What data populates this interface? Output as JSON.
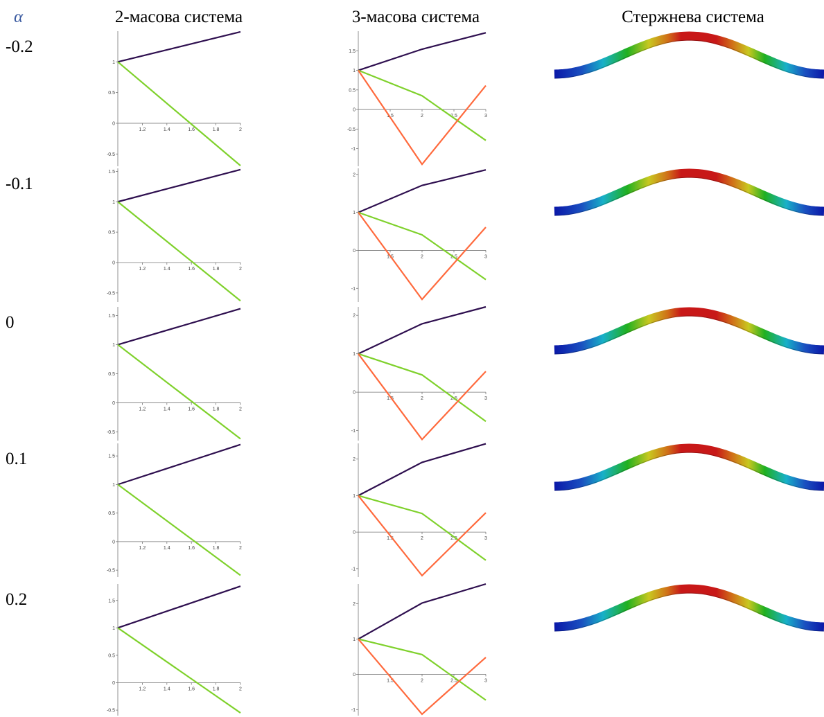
{
  "header": {
    "alpha": "α",
    "col2": "2-масова система",
    "col3": "3-масова система",
    "col4": "Стержнева система"
  },
  "rows": [
    {
      "alpha": "-0.2",
      "chart2": {
        "type": "line",
        "x": [
          1,
          2
        ],
        "xlim": [
          1,
          2
        ],
        "ylim": [
          -0.7,
          1.5
        ],
        "xticks": [
          1.2,
          1.4,
          1.6,
          1.8,
          2
        ],
        "yticks": [
          -0.5,
          0,
          0.5,
          1
        ],
        "series": [
          {
            "color": "#2e0f4f",
            "values": [
              1,
              1.49
            ]
          },
          {
            "color": "#7fd12c",
            "values": [
              1,
              -0.69
            ]
          }
        ]
      },
      "chart3": {
        "type": "line",
        "x": [
          1,
          2,
          3
        ],
        "xlim": [
          1,
          3
        ],
        "ylim": [
          -1.45,
          2.0
        ],
        "xticks": [
          1.5,
          2,
          2.5,
          3
        ],
        "yticks": [
          -1,
          -0.5,
          0,
          0.5,
          1,
          1.5
        ],
        "series": [
          {
            "color": "#2e0f4f",
            "values": [
              1,
              1.54,
              1.96
            ]
          },
          {
            "color": "#7fd12c",
            "values": [
              1,
              0.35,
              -0.79
            ]
          },
          {
            "color": "#ff6a3d",
            "values": [
              1,
              -1.4,
              0.61
            ]
          }
        ]
      }
    },
    {
      "alpha": "-0.1",
      "chart2": {
        "type": "line",
        "x": [
          1,
          2
        ],
        "xlim": [
          1,
          2
        ],
        "ylim": [
          -0.65,
          1.55
        ],
        "xticks": [
          1.2,
          1.4,
          1.6,
          1.8,
          2
        ],
        "yticks": [
          -0.5,
          0,
          0.5,
          1,
          1.5
        ],
        "series": [
          {
            "color": "#2e0f4f",
            "values": [
              1,
              1.53
            ]
          },
          {
            "color": "#7fd12c",
            "values": [
              1,
              -0.63
            ]
          }
        ]
      },
      "chart3": {
        "type": "line",
        "x": [
          1,
          2,
          3
        ],
        "xlim": [
          1,
          3
        ],
        "ylim": [
          -1.36,
          2.16
        ],
        "xticks": [
          1.5,
          2,
          2.5,
          3
        ],
        "yticks": [
          -1,
          0,
          1,
          2
        ],
        "series": [
          {
            "color": "#2e0f4f",
            "values": [
              1,
              1.71,
              2.12
            ]
          },
          {
            "color": "#7fd12c",
            "values": [
              1,
              0.41,
              -0.77
            ]
          },
          {
            "color": "#ff6a3d",
            "values": [
              1,
              -1.29,
              0.61
            ]
          }
        ]
      }
    },
    {
      "alpha": "0",
      "chart2": {
        "type": "line",
        "x": [
          1,
          2
        ],
        "xlim": [
          1,
          2
        ],
        "ylim": [
          -0.65,
          1.65
        ],
        "xticks": [
          1.2,
          1.4,
          1.6,
          1.8,
          2
        ],
        "yticks": [
          -0.5,
          0,
          0.5,
          1,
          1.5
        ],
        "series": [
          {
            "color": "#2e0f4f",
            "values": [
              1,
              1.62
            ]
          },
          {
            "color": "#7fd12c",
            "values": [
              1,
              -0.62
            ]
          }
        ]
      },
      "chart3": {
        "type": "line",
        "x": [
          1,
          2,
          3
        ],
        "xlim": [
          1,
          3
        ],
        "ylim": [
          -1.26,
          2.22
        ],
        "xticks": [
          1.5,
          2,
          2.5,
          3
        ],
        "yticks": [
          -1,
          0,
          1,
          2
        ],
        "series": [
          {
            "color": "#2e0f4f",
            "values": [
              1,
              1.78,
              2.22
            ]
          },
          {
            "color": "#7fd12c",
            "values": [
              1,
              0.45,
              -0.76
            ]
          },
          {
            "color": "#ff6a3d",
            "values": [
              1,
              -1.23,
              0.54
            ]
          }
        ]
      }
    },
    {
      "alpha": "0.1",
      "chart2": {
        "type": "line",
        "x": [
          1,
          2
        ],
        "xlim": [
          1,
          2
        ],
        "ylim": [
          -0.62,
          1.72
        ],
        "xticks": [
          1.2,
          1.4,
          1.6,
          1.8,
          2
        ],
        "yticks": [
          -0.5,
          0,
          0.5,
          1,
          1.5
        ],
        "series": [
          {
            "color": "#2e0f4f",
            "values": [
              1,
              1.7
            ]
          },
          {
            "color": "#7fd12c",
            "values": [
              1,
              -0.59
            ]
          }
        ]
      },
      "chart3": {
        "type": "line",
        "x": [
          1,
          2,
          3
        ],
        "xlim": [
          1,
          3
        ],
        "ylim": [
          -1.23,
          2.43
        ],
        "xticks": [
          1.5,
          2,
          2.5,
          3
        ],
        "yticks": [
          -1,
          0,
          1,
          2
        ],
        "series": [
          {
            "color": "#2e0f4f",
            "values": [
              1,
              1.91,
              2.42
            ]
          },
          {
            "color": "#7fd12c",
            "values": [
              1,
              0.51,
              -0.77
            ]
          },
          {
            "color": "#ff6a3d",
            "values": [
              1,
              -1.19,
              0.53
            ]
          }
        ]
      }
    },
    {
      "alpha": "0.2",
      "chart2": {
        "type": "line",
        "x": [
          1,
          2
        ],
        "xlim": [
          1,
          2
        ],
        "ylim": [
          -0.6,
          1.8
        ],
        "xticks": [
          1.2,
          1.4,
          1.6,
          1.8,
          2
        ],
        "yticks": [
          -0.5,
          0,
          0.5,
          1,
          1.5
        ],
        "series": [
          {
            "color": "#2e0f4f",
            "values": [
              1,
              1.76
            ]
          },
          {
            "color": "#7fd12c",
            "values": [
              1,
              -0.55
            ]
          }
        ]
      },
      "chart3": {
        "type": "line",
        "x": [
          1,
          2,
          3
        ],
        "xlim": [
          1,
          3
        ],
        "ylim": [
          -1.17,
          2.56
        ],
        "xticks": [
          1.5,
          2,
          2.5,
          3
        ],
        "yticks": [
          -1,
          0,
          1,
          2
        ],
        "series": [
          {
            "color": "#2e0f4f",
            "values": [
              1,
              2.02,
              2.56
            ]
          },
          {
            "color": "#7fd12c",
            "values": [
              1,
              0.56,
              -0.73
            ]
          },
          {
            "color": "#ff6a3d",
            "values": [
              1,
              -1.13,
              0.48
            ]
          }
        ]
      }
    }
  ]
}
